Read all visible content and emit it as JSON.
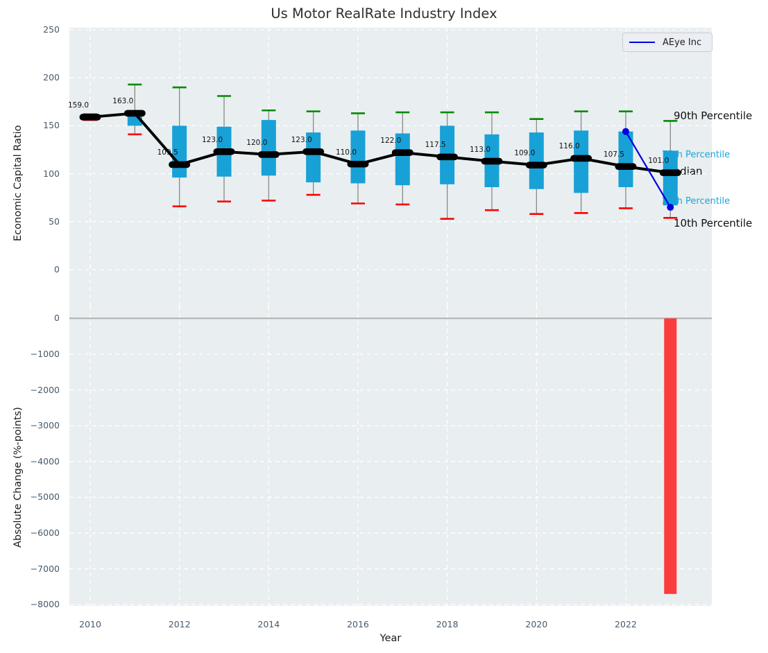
{
  "title": "Us Motor RealRate Industry Index",
  "legend": {
    "label": "AEye Inc"
  },
  "annotations": {
    "p90": "90th Percentile",
    "p75": "75th Percentile",
    "median": "Median",
    "p25": "25th Percentile",
    "p10": "10th Percentile"
  },
  "top_axis": {
    "ylabel": "Economic Capital Ratio",
    "yticks": [
      250,
      200,
      150,
      100,
      50,
      0
    ]
  },
  "bottom_axis": {
    "ylabel": "Absolute Change (%-points)",
    "xlabel": "Year",
    "yticks": [
      "0",
      "−1000",
      "−2000",
      "−3000",
      "−4000",
      "−5000",
      "−6000",
      "−7000",
      "−8000"
    ],
    "xticks": [
      2010,
      2012,
      2014,
      2016,
      2018,
      2020,
      2022
    ]
  },
  "colors": {
    "plot_bg": "#e9eef0",
    "grid": "#ffffff",
    "box_fill": "#18a1d6",
    "whisker": "#808080",
    "cap_90th": "#008b00",
    "cap_10th": "#fe0000",
    "median": "#000000",
    "series_line": "#0000e6",
    "bar_negative": "#fa3c3c",
    "zero_line": "#b0b0b0",
    "tick_text": "#44596e",
    "percentile_label_text": "#1da4d8"
  },
  "chart_data": [
    {
      "type": "boxplot",
      "title": "Us Motor RealRate Industry Index",
      "xlabel": "Year",
      "ylabel": "Economic Capital Ratio",
      "ylim": [
        -37,
        252
      ],
      "grid": "white dashed, on",
      "legend_position": "upper right",
      "x": [
        2010,
        2011,
        2012,
        2013,
        2014,
        2015,
        2016,
        2017,
        2018,
        2019,
        2020,
        2021,
        2022,
        2023
      ],
      "p90": [
        162,
        193,
        190,
        181,
        166,
        165,
        163,
        164,
        164,
        164,
        157,
        165,
        165,
        155
      ],
      "p75": [
        160,
        163,
        150,
        149,
        156,
        143,
        145,
        142,
        150,
        141,
        143,
        145,
        144,
        124
      ],
      "median": [
        159.0,
        163.0,
        109.5,
        123.0,
        120.0,
        123.0,
        110.0,
        122.0,
        117.5,
        113.0,
        109.0,
        116.0,
        107.5,
        101.0
      ],
      "p25": [
        158,
        150,
        96,
        97,
        98,
        91,
        90,
        88,
        89,
        86,
        84,
        80,
        86,
        67
      ],
      "p10": [
        156,
        141,
        66,
        71,
        72,
        78,
        69,
        68,
        53,
        62,
        58,
        59,
        64,
        54
      ],
      "median_labels": [
        "159.0",
        "163.0",
        "109.5",
        "123.0",
        "120.0",
        "123.0",
        "110.0",
        "122.0",
        "117.5",
        "113.0",
        "109.0",
        "116.0",
        "107.5",
        "101.0"
      ]
    },
    {
      "type": "line",
      "name": "AEye Inc",
      "x": [
        2022,
        2023
      ],
      "y": [
        144,
        65
      ]
    },
    {
      "type": "bar",
      "ylabel": "Absolute Change (%-points)",
      "x": [
        2023
      ],
      "values": [
        -7700
      ],
      "ylim": [
        -8000,
        430
      ]
    }
  ]
}
